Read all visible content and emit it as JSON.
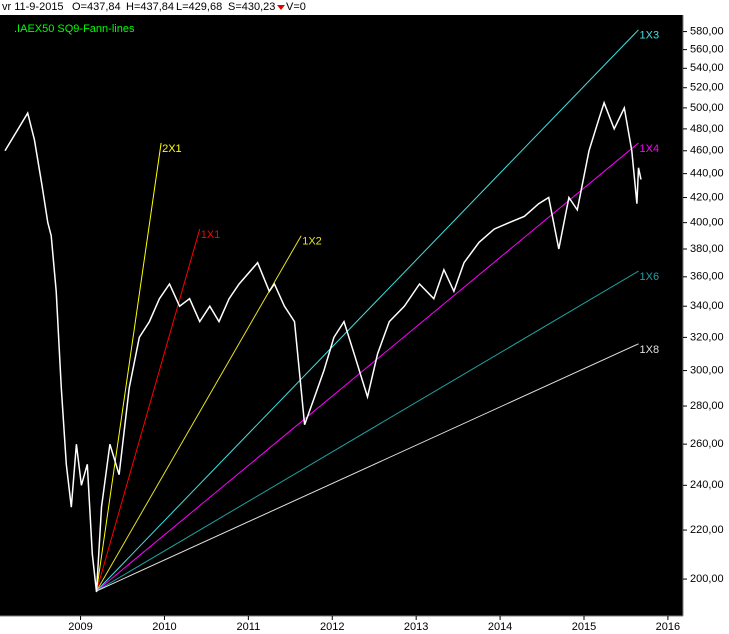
{
  "header": {
    "date": "vr 11-9-2015",
    "open": "O=437,84",
    "high": "H=437,84",
    "low": "L=429,68",
    "close": "S=430,23",
    "volume": "V=0"
  },
  "chart_data": {
    "type": "line",
    "title": ".IAEX50 SQ9-Fann-lines",
    "title_color": "#00ff00",
    "color": "#ffffff",
    "log_scale": true,
    "x": [
      2008.1,
      2008.37,
      2008.45,
      2008.54,
      2008.61,
      2008.65,
      2008.71,
      2008.77,
      2008.83,
      2008.89,
      2008.95,
      2009.01,
      2009.08,
      2009.14,
      2009.19,
      2009.25,
      2009.35,
      2009.46,
      2009.58,
      2009.7,
      2009.82,
      2009.94,
      2010.06,
      2010.18,
      2010.3,
      2010.42,
      2010.54,
      2010.65,
      2010.77,
      2010.89,
      2011.11,
      2011.25,
      2011.31,
      2011.43,
      2011.55,
      2011.67,
      2011.79,
      2011.9,
      2012.02,
      2012.14,
      2012.26,
      2012.42,
      2012.54,
      2012.68,
      2012.86,
      2013.04,
      2013.21,
      2013.33,
      2013.45,
      2013.57,
      2013.75,
      2013.93,
      2014.11,
      2014.29,
      2014.46,
      2014.58,
      2014.7,
      2014.82,
      2014.92,
      2015.06,
      2015.18,
      2015.24,
      2015.36,
      2015.48,
      2015.57,
      2015.63,
      2015.65,
      2015.68
    ],
    "values": [
      460,
      495,
      470,
      430,
      400,
      390,
      350,
      290,
      250,
      230,
      260,
      240,
      250,
      210,
      195,
      230,
      260,
      245,
      290,
      320,
      330,
      345,
      355,
      340,
      345,
      330,
      340,
      330,
      345,
      355,
      370,
      350,
      355,
      340,
      330,
      270,
      285,
      300,
      320,
      330,
      310,
      285,
      310,
      330,
      340,
      355,
      345,
      365,
      350,
      370,
      385,
      395,
      400,
      405,
      415,
      420,
      380,
      420,
      410,
      460,
      490,
      505,
      480,
      500,
      460,
      415,
      445,
      435
    ],
    "fan_lines": [
      {
        "name": "2X1",
        "color": "#ffff00",
        "x": [
          2009.19,
          2009.96
        ],
        "values": [
          195.4,
          467
        ]
      },
      {
        "name": "1X1",
        "color": "#ff0000",
        "x": [
          2009.19,
          2010.42
        ],
        "values": [
          195.4,
          395
        ]
      },
      {
        "name": "1X2",
        "color": "#e8e020",
        "x": [
          2009.19,
          2011.63
        ],
        "values": [
          195.4,
          390
        ]
      },
      {
        "name": "1X3",
        "color": "#40e0e0",
        "x": [
          2009.19,
          2015.65
        ],
        "values": [
          195.4,
          582
        ]
      },
      {
        "name": "1X4",
        "color": "#ff00ff",
        "x": [
          2009.19,
          2015.65
        ],
        "values": [
          195.4,
          467
        ]
      },
      {
        "name": "1X6",
        "color": "#20a0a0",
        "x": [
          2009.19,
          2015.65
        ],
        "values": [
          195.4,
          364
        ]
      },
      {
        "name": "1X8",
        "color": "#e0e0e0",
        "x": [
          2009.19,
          2015.65
        ],
        "values": [
          195.4,
          316
        ]
      }
    ],
    "xlim": [
      2008.04,
      2016.18
    ],
    "xticks": [
      2009,
      2010,
      2011,
      2012,
      2013,
      2014,
      2015,
      2016
    ],
    "ylim": [
      186.5,
      599
    ],
    "yticks": [
      {
        "value": 200,
        "label": "200,00"
      },
      {
        "value": 220,
        "label": "220,00"
      },
      {
        "value": 240,
        "label": "240,00"
      },
      {
        "value": 260,
        "label": "260,00"
      },
      {
        "value": 280,
        "label": "280,00"
      },
      {
        "value": 300,
        "label": "300,00"
      },
      {
        "value": 320,
        "label": "320,00"
      },
      {
        "value": 340,
        "label": "340,00"
      },
      {
        "value": 360,
        "label": "360,00"
      },
      {
        "value": 380,
        "label": "380,00"
      },
      {
        "value": 400,
        "label": "400,00"
      },
      {
        "value": 420,
        "label": "420,00"
      },
      {
        "value": 440,
        "label": "440,00"
      },
      {
        "value": 460,
        "label": "460,00"
      },
      {
        "value": 480,
        "label": "480,00"
      },
      {
        "value": 500,
        "label": "500,00"
      },
      {
        "value": 520,
        "label": "520,00"
      },
      {
        "value": 540,
        "label": "540,00"
      },
      {
        "value": 560,
        "label": "560,00"
      },
      {
        "value": 580,
        "label": "580,00"
      }
    ]
  }
}
